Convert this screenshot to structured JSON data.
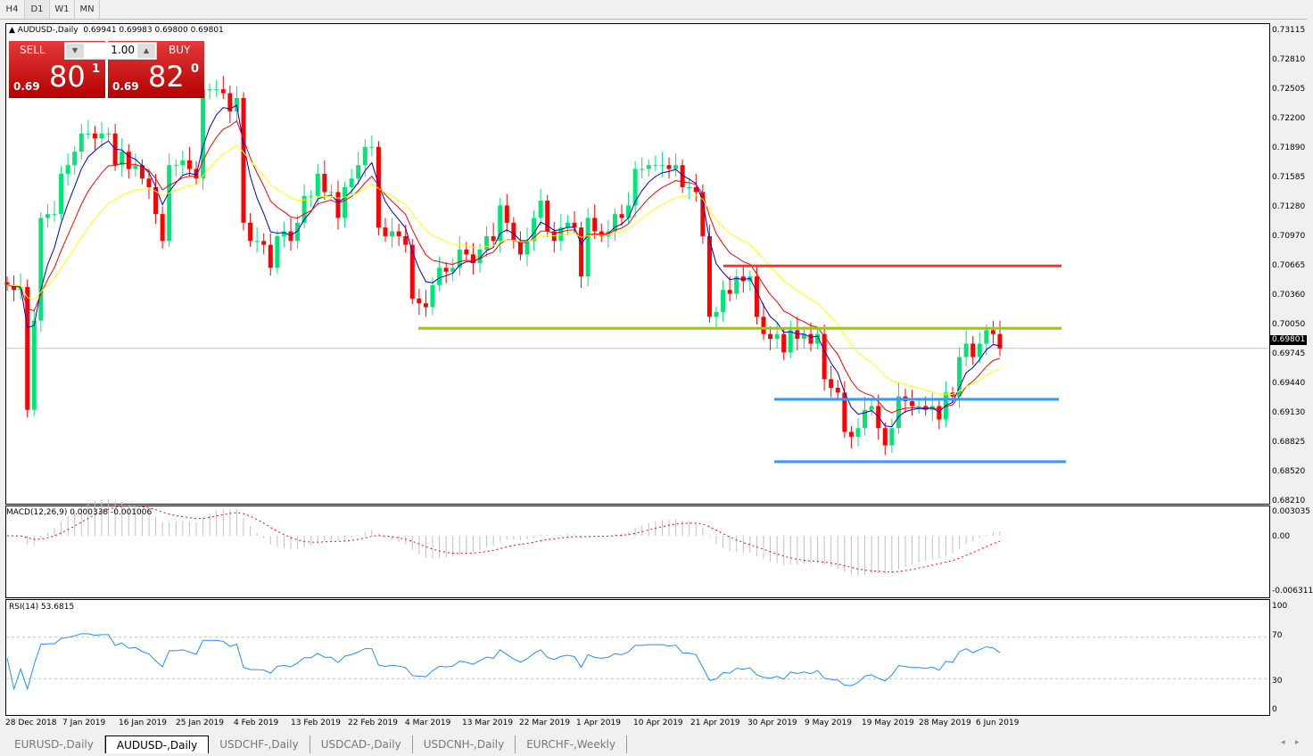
{
  "toolbar": {
    "timeframes": [
      "H4",
      "D1",
      "W1",
      "MN"
    ],
    "active": "D1"
  },
  "chart": {
    "title": "AUDUSD-,Daily",
    "ohlc": "0.69941 0.69983 0.69800 0.69801",
    "current_price": "0.69801"
  },
  "trade_panel": {
    "sell_label": "SELL",
    "buy_label": "BUY",
    "lot": "1.00",
    "sell_prefix": "0.69",
    "sell_big": "80",
    "sell_sup": "1",
    "buy_prefix": "0.69",
    "buy_big": "82",
    "buy_sup": "0"
  },
  "price_axis": [
    "0.73115",
    "0.72810",
    "0.72505",
    "0.72200",
    "0.71890",
    "0.71585",
    "0.71280",
    "0.70970",
    "0.70665",
    "0.70360",
    "0.70050",
    "0.69745",
    "0.69440",
    "0.69130",
    "0.68825",
    "0.68520",
    "0.68210"
  ],
  "macd": {
    "label": "MACD(12,26,9) 0.000338 -0.001006",
    "axis": [
      "0.003035",
      "0.00",
      "-0.006311"
    ]
  },
  "rsi": {
    "label": "RSI(14) 53.6815",
    "axis": [
      "100",
      "70",
      "30",
      "0"
    ]
  },
  "date_axis": [
    "28 Dec 2018",
    "7 Jan 2019",
    "16 Jan 2019",
    "25 Jan 2019",
    "4 Feb 2019",
    "13 Feb 2019",
    "22 Feb 2019",
    "4 Mar 2019",
    "13 Mar 2019",
    "22 Mar 2019",
    "1 Apr 2019",
    "10 Apr 2019",
    "21 Apr 2019",
    "30 Apr 2019",
    "9 May 2019",
    "19 May 2019",
    "28 May 2019",
    "6 Jun 2019"
  ],
  "tabs": [
    "EURUSD-,Daily",
    "AUDUSD-,Daily",
    "USDCHF-,Daily",
    "USDCAD-,Daily",
    "USDCNH-,Daily",
    "EURCHF-,Weekly"
  ],
  "active_tab": "AUDUSD-,Daily",
  "colors": {
    "bull": "#00e676",
    "bear": "#ff0000",
    "ma_fast": "#0000cc",
    "ma_mid": "#ff0000",
    "ma_slow": "#ffff00",
    "resistance": "#ff3333",
    "pivot": "#99cc00",
    "support": "#3399ff",
    "rsi": "#1e90ff"
  },
  "chart_data": {
    "type": "candlestick",
    "price_range": [
      0.6821,
      0.73115
    ],
    "closes": [
      0.7046,
      0.7041,
      0.7044,
      0.6916,
      0.7009,
      0.7116,
      0.712,
      0.712,
      0.7162,
      0.7171,
      0.7185,
      0.7204,
      0.7204,
      0.7199,
      0.7204,
      0.7204,
      0.7171,
      0.7185,
      0.7167,
      0.7171,
      0.7157,
      0.7148,
      0.712,
      0.7092,
      0.7171,
      0.7171,
      0.7176,
      0.7167,
      0.7157,
      0.725,
      0.725,
      0.725,
      0.7246,
      0.7227,
      0.7241,
      0.7111,
      0.7092,
      0.7092,
      0.7088,
      0.7064,
      0.7097,
      0.7102,
      0.7092,
      0.7111,
      0.7139,
      0.7139,
      0.7162,
      0.7143,
      0.7143,
      0.7116,
      0.7148,
      0.7157,
      0.7171,
      0.719,
      0.719,
      0.7106,
      0.7097,
      0.7102,
      0.7097,
      0.7088,
      0.7032,
      0.7027,
      0.7023,
      0.7046,
      0.7064,
      0.706,
      0.7064,
      0.7083,
      0.7078,
      0.7069,
      0.7083,
      0.7097,
      0.7092,
      0.7129,
      0.7111,
      0.7092,
      0.7078,
      0.7092,
      0.7116,
      0.7134,
      0.7102,
      0.7092,
      0.7106,
      0.7111,
      0.7106,
      0.7055,
      0.7116,
      0.7102,
      0.7097,
      0.7102,
      0.712,
      0.7116,
      0.7129,
      0.7167,
      0.7167,
      0.7171,
      0.7171,
      0.7171,
      0.7167,
      0.7171,
      0.7148,
      0.7148,
      0.7143,
      0.7097,
      0.7013,
      0.7018,
      0.7041,
      0.7037,
      0.7055,
      0.705,
      0.7055,
      0.7013,
      0.6995,
      0.699,
      0.6995,
      0.6976,
      0.6999,
      0.699,
      0.6995,
      0.6985,
      0.6995,
      0.6948,
      0.6939,
      0.6934,
      0.6893,
      0.6888,
      0.6897,
      0.6916,
      0.692,
      0.6897,
      0.6879,
      0.6897,
      0.693,
      0.6925,
      0.692,
      0.692,
      0.6916,
      0.692,
      0.6906,
      0.6934,
      0.693,
      0.6971,
      0.6985,
      0.6971,
      0.6985,
      0.6999,
      0.6995,
      0.698
    ],
    "horizontal_lines": [
      {
        "price": 0.7066,
        "color": "resistance"
      },
      {
        "price": 0.7001,
        "color": "pivot"
      },
      {
        "price": 0.6927,
        "color": "support"
      },
      {
        "price": 0.6862,
        "color": "support"
      }
    ]
  }
}
